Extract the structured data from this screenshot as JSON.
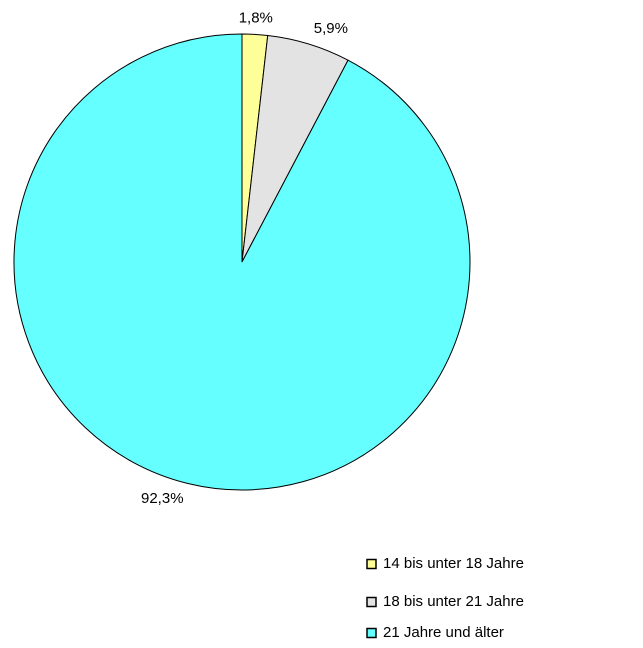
{
  "chart_data": {
    "type": "pie",
    "categories": [
      "14 bis unter 18 Jahre",
      "18 bis unter 21 Jahre",
      "21 Jahre und älter"
    ],
    "values": [
      1.8,
      5.9,
      92.3
    ],
    "value_labels": [
      "1,8%",
      "5,9%",
      "92,3%"
    ],
    "colors": [
      "#ffff99",
      "#e3e3e3",
      "#66ffff"
    ],
    "legend": "bottom-right"
  }
}
